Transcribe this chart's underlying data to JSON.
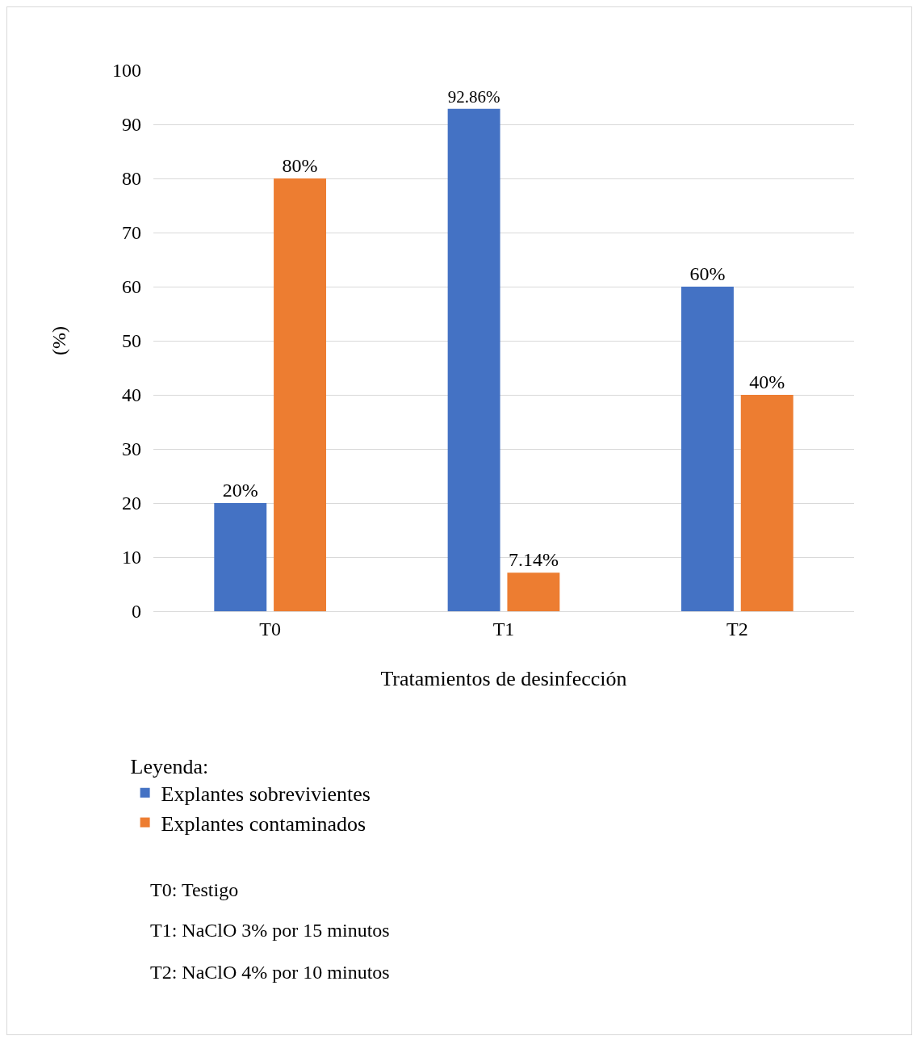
{
  "chart_data": {
    "type": "bar",
    "xlabel": "Tratamientos de desinfección",
    "ylabel": "(%)",
    "legend_title": "Leyenda:",
    "categories": [
      "T0",
      "T1",
      "T2"
    ],
    "series": [
      {
        "name": "Explantes sobrevivientes",
        "color": "#4472c4",
        "values": [
          20,
          92.86,
          60
        ],
        "value_labels": [
          "20%",
          "92.86%",
          "60%"
        ]
      },
      {
        "name": "Explantes contaminados",
        "color": "#ed7d31",
        "values": [
          80,
          7.14,
          40
        ],
        "value_labels": [
          "80%",
          "7.14%",
          "40%"
        ]
      }
    ],
    "ylim": [
      0,
      100
    ],
    "yticks": [
      0,
      10,
      20,
      30,
      40,
      50,
      60,
      70,
      80,
      90,
      100
    ],
    "grid": "y",
    "legend": "bottom left",
    "annotations": [
      "T0: Testigo",
      "T1: NaClO 3% por 15 minutos",
      "T2: NaClO 4% por 10 minutos"
    ]
  }
}
